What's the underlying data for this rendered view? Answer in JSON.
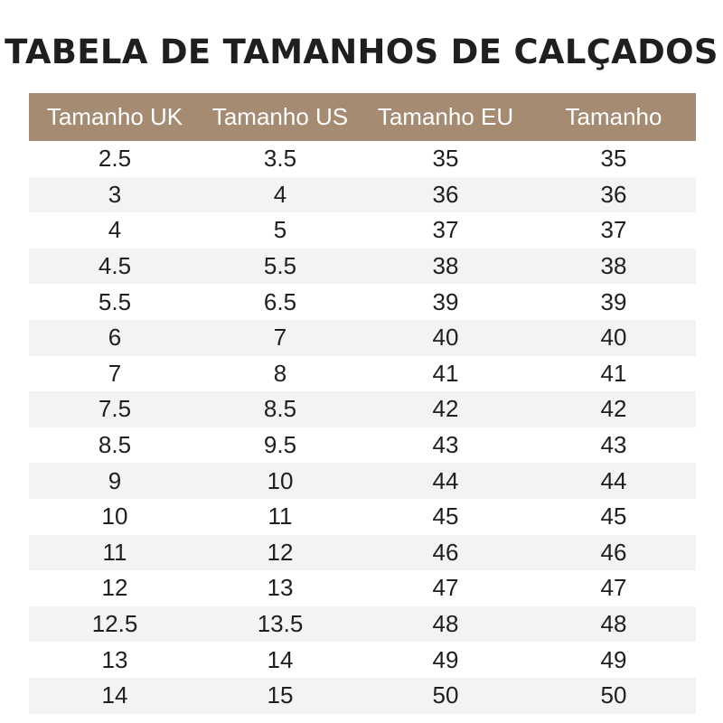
{
  "title": "TABELA DE TAMANHOS DE CALÇADOS",
  "colors": {
    "header_bg": "#a48b71",
    "header_text": "#ffffff",
    "stripe_bg": "#f3f3f3",
    "text": "#1f1f1f"
  },
  "table": {
    "headers": [
      "Tamanho UK",
      "Tamanho US",
      "Tamanho EU",
      "Tamanho"
    ],
    "rows": [
      [
        "2.5",
        "3.5",
        "35",
        "35"
      ],
      [
        "3",
        "4",
        "36",
        "36"
      ],
      [
        "4",
        "5",
        "37",
        "37"
      ],
      [
        "4.5",
        "5.5",
        "38",
        "38"
      ],
      [
        "5.5",
        "6.5",
        "39",
        "39"
      ],
      [
        "6",
        "7",
        "40",
        "40"
      ],
      [
        "7",
        "8",
        "41",
        "41"
      ],
      [
        "7.5",
        "8.5",
        "42",
        "42"
      ],
      [
        "8.5",
        "9.5",
        "43",
        "43"
      ],
      [
        "9",
        "10",
        "44",
        "44"
      ],
      [
        "10",
        "11",
        "45",
        "45"
      ],
      [
        "11",
        "12",
        "46",
        "46"
      ],
      [
        "12",
        "13",
        "47",
        "47"
      ],
      [
        "12.5",
        "13.5",
        "48",
        "48"
      ],
      [
        "13",
        "14",
        "49",
        "49"
      ],
      [
        "14",
        "15",
        "50",
        "50"
      ]
    ]
  }
}
